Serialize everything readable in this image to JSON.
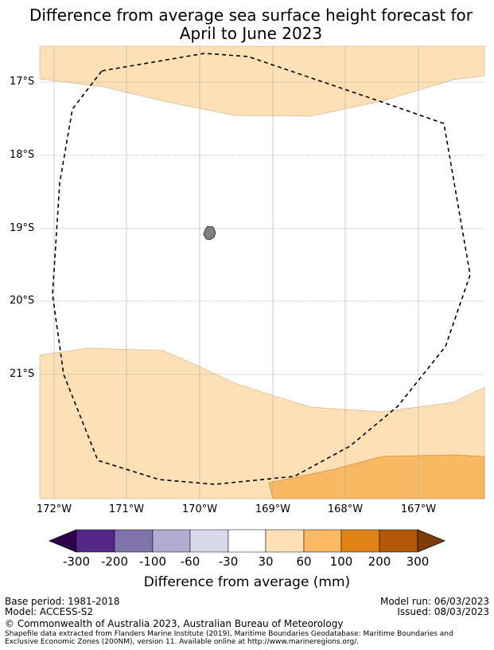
{
  "title": {
    "line1": "Difference from average sea surface height forecast for",
    "line2": "April to June 2023"
  },
  "map": {
    "lat_labels": [
      "17°S",
      "18°S",
      "19°S",
      "20°S",
      "21°S"
    ],
    "lon_labels": [
      "172°W",
      "171°W",
      "170°W",
      "169°W",
      "168°W",
      "167°W"
    ],
    "colors": {
      "band_30_60": "#fde0b6",
      "band_60_100": "#f9b862",
      "land": "#808080",
      "eez_line": "#000000"
    }
  },
  "colorbar": {
    "ticks": [
      "-300",
      "-200",
      "-100",
      "-60",
      "-30",
      "30",
      "60",
      "100",
      "200",
      "300"
    ],
    "colors": [
      "#2d004b",
      "#542788",
      "#8073ac",
      "#b2abd2",
      "#d8daeb",
      "#ffffff",
      "#fee0b6",
      "#fdb863",
      "#e08214",
      "#b35806",
      "#7f3b08"
    ],
    "label": "Difference from average (mm)"
  },
  "footer": {
    "base_period": "Base period: 1981-2018",
    "model": "Model: ACCESS-S2",
    "model_run": "Model run: 06/03/2023",
    "issued": "Issued: 08/03/2023",
    "copyright": "© Commonwealth of Australia 2023, Australian Bureau of Meteorology",
    "shapefile_line1": "Shapefile data extracted from Flanders Marine Institute (2019), Maritime Boundaries Geodatabase: Maritime Boundaries and",
    "shapefile_line2": "Exclusive Economic Zones (200NM), version 11. Available online at http://www.marineregions.org/."
  }
}
